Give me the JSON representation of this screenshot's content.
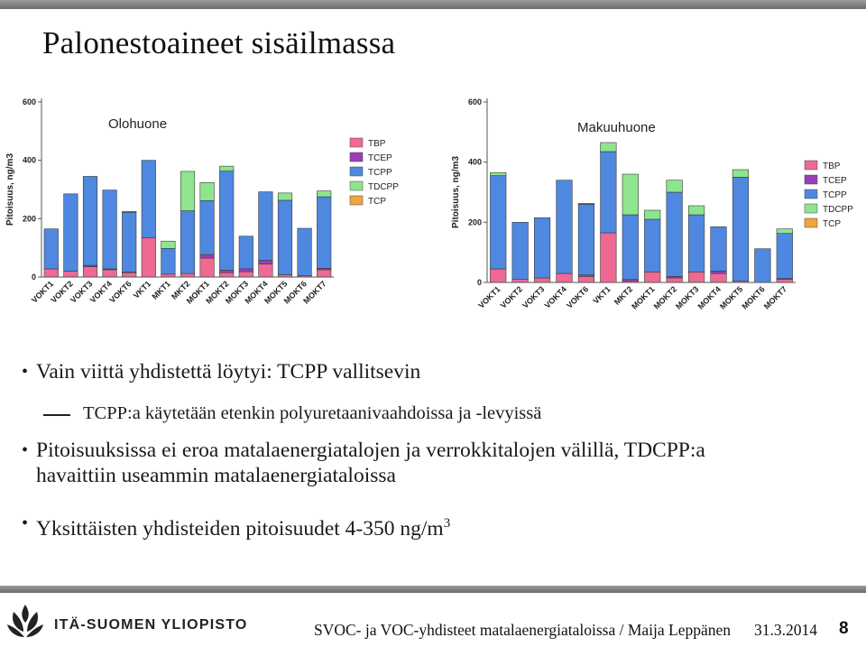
{
  "slide": {
    "title": "Palonestoaineet sisäilmassa",
    "bullets": [
      {
        "text": "Vain viittä yhdistettä löytyi: TCPP vallitsevin"
      },
      {
        "text": "Pitoisuuksissa ei eroa matalaenergiatalojen ja verrokkitalojen välillä, TDCPP:a havaittiin useammin matalaenergiataloissa"
      },
      {
        "text": "Yksittäisten yhdisteiden pitoisuudet 4-350 ng/m",
        "sup": "3"
      }
    ],
    "subbullet": "TCPP:a käytetään etenkin polyuretaanivaahdoissa ja -levyissä",
    "bullet_symbol": "•"
  },
  "footer": {
    "university": "ITÄ-SUOMEN YLIOPISTO",
    "text": "SVOC- ja VOC-yhdisteet matalaenergiataloissa / Maija Leppänen",
    "date": "31.3.2014",
    "page": "8"
  },
  "colors": {
    "TBP": "#ee6a93",
    "TCEP": "#9b3fb5",
    "TCPP": "#4f88e0",
    "TDCPP": "#8fe58f",
    "TCP": "#f2a441"
  },
  "chart_data": [
    {
      "type": "bar",
      "stacked": true,
      "title": "Olohuone",
      "ylabel": "Pitoisuus, ng/m3",
      "ylim": [
        0,
        600
      ],
      "yticks": [
        "0",
        "200",
        "400",
        "600"
      ],
      "legend": [
        "TBP",
        "TCEP",
        "TCPP",
        "TDCPP",
        "TCP"
      ],
      "legend_position": "right",
      "categories": [
        "VOKT1",
        "VOKT2",
        "VOKT3",
        "VOKT4",
        "VOKT6",
        "VKT1",
        "MKT1",
        "MKT2",
        "MOKT1",
        "MOKT2",
        "MOKT3",
        "MOKT4",
        "MOKT5",
        "MOKT6",
        "MOKT7"
      ],
      "series": [
        {
          "name": "TBP",
          "values": [
            28,
            20,
            35,
            25,
            15,
            135,
            10,
            12,
            65,
            15,
            18,
            45,
            8,
            5,
            25
          ]
        },
        {
          "name": "TCEP",
          "values": [
            0,
            0,
            5,
            3,
            2,
            0,
            0,
            0,
            12,
            8,
            10,
            12,
            0,
            0,
            5
          ]
        },
        {
          "name": "TCPP",
          "values": [
            137,
            265,
            305,
            270,
            205,
            265,
            88,
            215,
            185,
            340,
            112,
            235,
            255,
            162,
            245
          ]
        },
        {
          "name": "TDCPP",
          "values": [
            0,
            0,
            0,
            0,
            0,
            0,
            25,
            135,
            62,
            17,
            0,
            0,
            25,
            0,
            20
          ]
        },
        {
          "name": "TCP",
          "values": [
            0,
            0,
            0,
            0,
            3,
            0,
            0,
            0,
            0,
            0,
            0,
            0,
            0,
            0,
            0
          ]
        }
      ]
    },
    {
      "type": "bar",
      "stacked": true,
      "title": "Makuuhuone",
      "ylabel": "Pitoisuus, ng/m3",
      "ylim": [
        0,
        600
      ],
      "yticks": [
        "0",
        "200",
        "400",
        "600"
      ],
      "legend": [
        "TBP",
        "TCEP",
        "TCPP",
        "TDCPP",
        "TCP"
      ],
      "legend_position": "right",
      "categories": [
        "VOKT1",
        "VOKT2",
        "VOKT3",
        "VOKT4",
        "VOKT6",
        "VKT1",
        "MKT2",
        "MOKT1",
        "MOKT2",
        "MOKT3",
        "MOKT4",
        "MOKT5",
        "MOKT6",
        "MOKT7"
      ],
      "series": [
        {
          "name": "TBP",
          "values": [
            45,
            10,
            15,
            30,
            20,
            165,
            5,
            35,
            15,
            35,
            30,
            5,
            0,
            10
          ]
        },
        {
          "name": "TCEP",
          "values": [
            0,
            0,
            0,
            0,
            5,
            0,
            5,
            0,
            5,
            0,
            8,
            0,
            0,
            3
          ]
        },
        {
          "name": "TCPP",
          "values": [
            310,
            190,
            200,
            310,
            235,
            270,
            215,
            175,
            280,
            190,
            147,
            345,
            112,
            150
          ]
        },
        {
          "name": "TDCPP",
          "values": [
            10,
            0,
            0,
            0,
            0,
            30,
            135,
            30,
            40,
            30,
            0,
            25,
            0,
            15
          ]
        },
        {
          "name": "TCP",
          "values": [
            0,
            0,
            0,
            0,
            3,
            0,
            0,
            0,
            0,
            0,
            0,
            0,
            0,
            0
          ]
        }
      ]
    }
  ]
}
